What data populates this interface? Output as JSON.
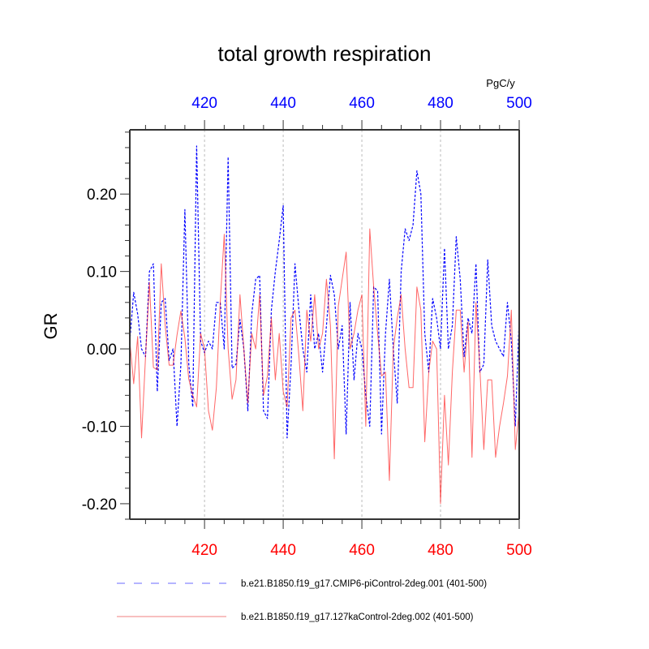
{
  "chart_data": {
    "type": "line",
    "title": "total growth respiration",
    "ylabel": "GR",
    "xlabel": "",
    "top_axis_units": "PgC/y",
    "xlim": [
      401,
      500
    ],
    "ylim": [
      -0.22,
      0.283
    ],
    "x_ticks": [
      420,
      440,
      460,
      480,
      500
    ],
    "x_tick_labels": [
      "420",
      "440",
      "460",
      "480",
      "500"
    ],
    "x_minor_step": 5,
    "y_ticks": [
      0.2,
      0.1,
      0.0,
      -0.1,
      -0.2
    ],
    "y_tick_labels": [
      "0.20",
      "0.10",
      "0.00",
      "-0.10",
      "-0.20"
    ],
    "y_minor_step": 0.02,
    "vertical_gridlines": [
      420,
      440,
      460,
      480
    ],
    "bottom_axis_color": "#ff0000",
    "top_axis_color": "#0000ff",
    "legend_position": "bottom",
    "x_start": 401,
    "series": [
      {
        "name": "b.e21.B1850.f19_g17.CMIP6-piControl-2deg.001 (401-500)",
        "color": "#0000ff",
        "style": "dashed",
        "values": [
          0.01,
          0.073,
          0.045,
          0.0,
          -0.01,
          0.1,
          0.11,
          -0.055,
          0.06,
          0.065,
          -0.015,
          0.0,
          -0.1,
          -0.02,
          0.18,
          -0.02,
          -0.075,
          0.262,
          0.01,
          -0.005,
          0.01,
          0.0,
          0.06,
          0.06,
          0.0,
          0.248,
          -0.025,
          -0.02,
          0.038,
          0.0,
          -0.08,
          0.045,
          0.09,
          0.095,
          -0.08,
          -0.09,
          0.05,
          0.1,
          0.14,
          0.185,
          -0.115,
          -0.02,
          0.11,
          0.05,
          0.0,
          -0.03,
          0.07,
          0.0,
          0.02,
          -0.03,
          0.03,
          0.095,
          0.07,
          0.0,
          0.03,
          -0.11,
          0.06,
          -0.04,
          0.02,
          0.0,
          -0.06,
          -0.1,
          0.08,
          0.075,
          -0.11,
          0.02,
          0.09,
          0.0,
          -0.07,
          0.1,
          0.155,
          0.14,
          0.16,
          0.23,
          0.2,
          0.02,
          -0.03,
          0.065,
          0.04,
          0.0,
          0.13,
          0.0,
          0.03,
          0.145,
          0.09,
          -0.01,
          0.04,
          0.02,
          0.11,
          -0.03,
          -0.02,
          0.115,
          0.03,
          0.01,
          0.0,
          -0.01,
          0.06,
          0.01,
          -0.1,
          0.04
        ]
      },
      {
        "name": "b.e21.B1850.f19_g17.127kaControl-2deg.002 (401-500)",
        "color": "#ff0000",
        "style": "solid",
        "values": [
          0.01,
          -0.045,
          0.016,
          -0.115,
          -0.01,
          0.086,
          -0.024,
          -0.027,
          0.11,
          0.03,
          -0.021,
          -0.021,
          0.018,
          0.049,
          0.014,
          -0.039,
          -0.06,
          -0.075,
          0.02,
          0.0,
          -0.08,
          -0.105,
          -0.05,
          0.06,
          0.148,
          0.0,
          -0.065,
          -0.04,
          0.07,
          0.0,
          -0.07,
          0.02,
          0.0,
          0.07,
          -0.06,
          -0.035,
          0.04,
          -0.04,
          0.02,
          -0.055,
          -0.075,
          0.04,
          0.05,
          -0.01,
          -0.08,
          0.05,
          0.01,
          0.07,
          0.0,
          0.02,
          0.09,
          0.03,
          -0.142,
          0.055,
          0.09,
          0.125,
          0.0,
          0.02,
          0.05,
          0.07,
          -0.1,
          0.155,
          0.08,
          0.02,
          -0.035,
          -0.03,
          -0.17,
          0.0,
          0.04,
          0.07,
          0.0,
          -0.05,
          -0.05,
          0.08,
          0.05,
          -0.12,
          -0.03,
          0.01,
          0.0,
          -0.2,
          -0.06,
          -0.15,
          -0.03,
          0.05,
          0.05,
          -0.03,
          0.035,
          -0.14,
          0.06,
          -0.025,
          -0.13,
          -0.04,
          -0.04,
          -0.14,
          -0.1,
          -0.07,
          -0.035,
          0.05,
          -0.13,
          -0.08
        ]
      }
    ]
  }
}
